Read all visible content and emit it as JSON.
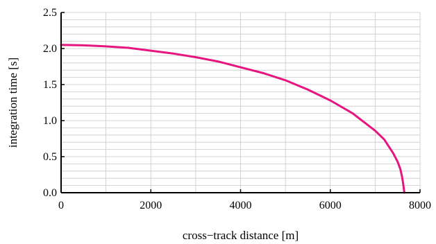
{
  "chart_data": {
    "type": "line",
    "title": "",
    "xlabel": "cross−track distance [m]",
    "ylabel": "integration time [s]",
    "xlim": [
      0,
      8000
    ],
    "ylim": [
      0,
      2.5
    ],
    "x_ticks": [
      "0",
      "2000",
      "4000",
      "6000",
      "8000"
    ],
    "y_ticks": [
      "0.0",
      "0.5",
      "1.0",
      "1.5",
      "2.0",
      "2.5"
    ],
    "grid": true,
    "series": [
      {
        "color": "#e6157f",
        "x": [
          0,
          500,
          1000,
          1500,
          2000,
          2500,
          3000,
          3500,
          4000,
          4500,
          5000,
          5500,
          6000,
          6500,
          7000,
          7200,
          7400,
          7500,
          7560,
          7600,
          7630,
          7650
        ],
        "y": [
          2.05,
          2.045,
          2.03,
          2.01,
          1.97,
          1.93,
          1.88,
          1.82,
          1.74,
          1.66,
          1.56,
          1.43,
          1.28,
          1.1,
          0.86,
          0.74,
          0.55,
          0.43,
          0.33,
          0.22,
          0.1,
          0.0
        ]
      }
    ]
  }
}
